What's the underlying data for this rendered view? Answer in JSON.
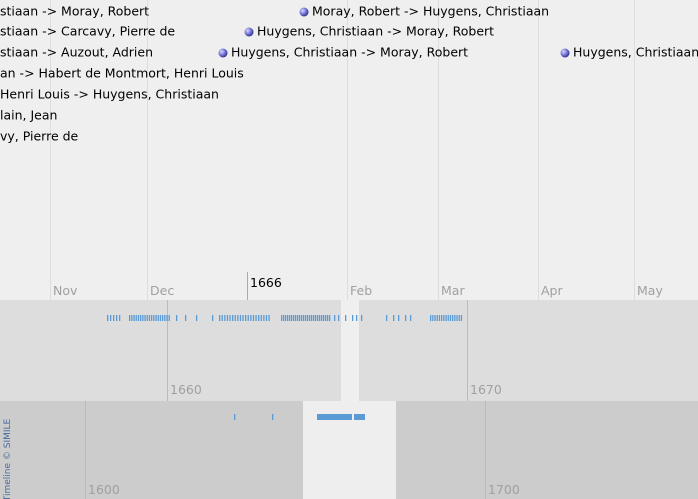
{
  "timeline": {
    "events": [
      {
        "label": "stiaan -> Moray, Robert"
      },
      {
        "label": "Moray, Robert -> Huygens, Christiaan"
      },
      {
        "label": "stiaan -> Carcavy, Pierre de"
      },
      {
        "label": "Huygens, Christiaan -> Moray, Robert"
      },
      {
        "label": "stiaan -> Auzout, Adrien"
      },
      {
        "label": "Huygens, Christiaan -> Moray, Robert"
      },
      {
        "label": "Huygens, Christiaan ->"
      },
      {
        "label": "an -> Habert de Montmort, Henri Louis"
      },
      {
        "label": "Henri Louis -> Huygens, Christiaan"
      },
      {
        "label": "lain, Jean"
      },
      {
        "label": "vy, Pierre de"
      }
    ],
    "months": [
      "Nov",
      "Dec",
      "1666",
      "Feb",
      "Mar",
      "Apr",
      "May"
    ],
    "decades": [
      "1660",
      "1670"
    ],
    "centuries": [
      "1600",
      "1700"
    ],
    "credit": "Timeline © SIMILE"
  }
}
